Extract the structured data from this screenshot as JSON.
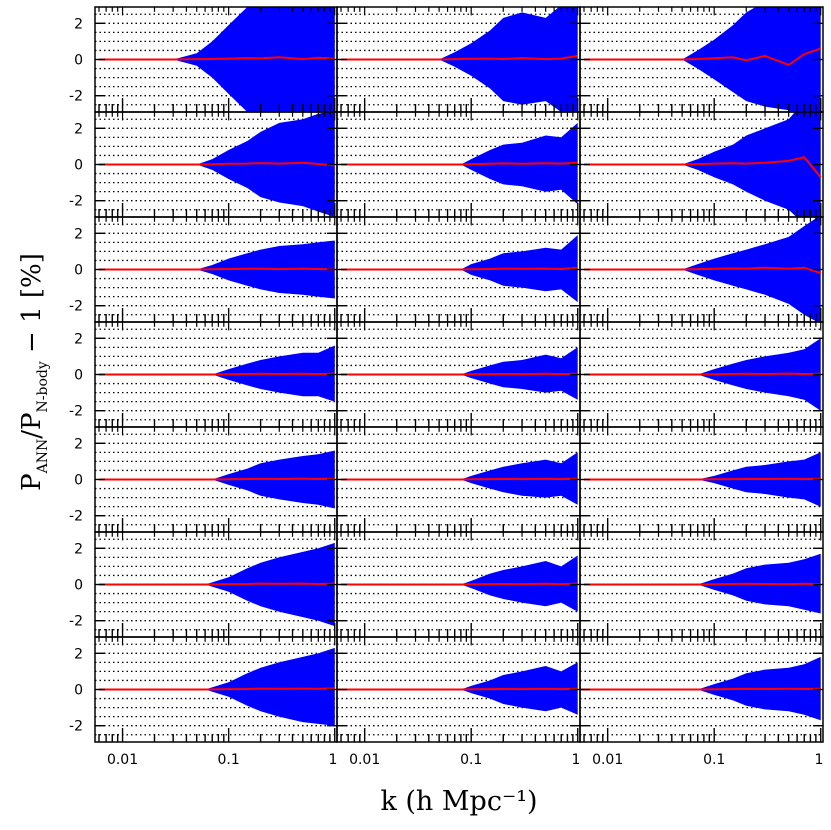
{
  "chart_data": {
    "type": "area",
    "layout": {
      "rows": 7,
      "cols": 3
    },
    "xscale": "log",
    "xlim": [
      0.0055,
      1.05
    ],
    "ylim": [
      -2.9,
      2.9
    ],
    "xticks": [
      0.01,
      0.1,
      1
    ],
    "xtick_labels": [
      "0.01",
      "0.1",
      "1"
    ],
    "yticks": [
      -2,
      0,
      2
    ],
    "ytick_labels": [
      "-2",
      "0",
      "2"
    ],
    "dotted_grid_y": [
      -2.5,
      -2,
      -1.5,
      -1,
      -0.5,
      0.5,
      1,
      1.5,
      2,
      2.5
    ],
    "xlabel": "k (h Mpc⁻¹)",
    "ylabel": {
      "main": "P",
      "sub1": "ANN",
      "slash": "/P",
      "sub2": "N-body",
      "rest": " − 1  [%]"
    },
    "band_color": "#0000ff",
    "line_color": "#ff0000",
    "k_min": [
      [
        0.006,
        0.006,
        0.006
      ],
      [
        0.006,
        0.006,
        0.006
      ],
      [
        0.006,
        0.006,
        0.006
      ],
      [
        0.006,
        0.006,
        0.006
      ],
      [
        0.006,
        0.006,
        0.006
      ],
      [
        0.006,
        0.006,
        0.006
      ],
      [
        0.006,
        0.005,
        0.005
      ]
    ],
    "panels": [
      [
        {
          "onset": 0.03,
          "k": [
            0.03,
            0.05,
            0.07,
            0.1,
            0.15,
            0.2,
            0.3,
            0.5,
            0.7,
            1.0
          ],
          "upper": [
            0,
            0.35,
            1.0,
            1.9,
            2.9,
            3.5,
            3.8,
            3.8,
            3.8,
            3.8
          ],
          "lower": [
            0,
            -0.35,
            -1.0,
            -1.9,
            -2.9,
            -3.5,
            -3.8,
            -3.8,
            -3.8,
            -3.8
          ],
          "ratio": [
            0,
            0.02,
            0.03,
            0.05,
            0.08,
            0.06,
            0.12,
            0.02,
            0.1,
            0.05
          ]
        },
        {
          "onset": 0.05,
          "k": [
            0.05,
            0.07,
            0.1,
            0.15,
            0.2,
            0.3,
            0.5,
            0.7,
            1.0
          ],
          "upper": [
            0,
            0.4,
            0.9,
            1.6,
            2.3,
            2.6,
            2.3,
            3.0,
            3.8
          ],
          "lower": [
            0,
            -0.4,
            -0.9,
            -1.6,
            -2.3,
            -2.5,
            -2.3,
            -2.9,
            -3.8
          ],
          "ratio": [
            0,
            0.02,
            0.04,
            0.05,
            0.03,
            0.08,
            0.02,
            0.05,
            0.2
          ]
        },
        {
          "onset": 0.05,
          "k": [
            0.05,
            0.07,
            0.1,
            0.15,
            0.2,
            0.3,
            0.5,
            0.7,
            1.0
          ],
          "upper": [
            0,
            0.5,
            1.1,
            1.9,
            2.6,
            3.2,
            3.6,
            3.8,
            3.8
          ],
          "lower": [
            0,
            -0.5,
            -1.1,
            -1.8,
            -2.3,
            -2.6,
            -2.8,
            -3.4,
            -3.8
          ],
          "ratio": [
            0,
            0.03,
            0.07,
            0.12,
            -0.05,
            0.2,
            -0.3,
            0.3,
            0.6
          ]
        }
      ],
      [
        {
          "onset": 0.05,
          "k": [
            0.05,
            0.07,
            0.1,
            0.15,
            0.2,
            0.3,
            0.5,
            0.7,
            1.0
          ],
          "upper": [
            0,
            0.3,
            0.8,
            1.3,
            1.8,
            2.3,
            2.5,
            2.8,
            3.0
          ],
          "lower": [
            0,
            -0.3,
            -0.8,
            -1.3,
            -1.8,
            -2.1,
            -2.3,
            -2.6,
            -2.9
          ],
          "ratio": [
            0,
            0.01,
            0.04,
            0.05,
            0.08,
            0.05,
            0.1,
            0.03,
            -0.05
          ]
        },
        {
          "onset": 0.08,
          "k": [
            0.08,
            0.1,
            0.15,
            0.2,
            0.3,
            0.5,
            0.7,
            1.0
          ],
          "upper": [
            0,
            0.3,
            0.8,
            1.1,
            1.2,
            1.6,
            1.5,
            2.3
          ],
          "lower": [
            0,
            -0.3,
            -0.8,
            -1.1,
            -1.2,
            -1.5,
            -1.4,
            -2.2
          ],
          "ratio": [
            0,
            0.02,
            0.04,
            0.06,
            0.04,
            0.07,
            0.05,
            0.1
          ]
        },
        {
          "onset": 0.05,
          "k": [
            0.05,
            0.07,
            0.1,
            0.15,
            0.2,
            0.3,
            0.5,
            0.7,
            1.0
          ],
          "upper": [
            0,
            0.3,
            0.7,
            1.1,
            1.6,
            2.0,
            2.5,
            3.5,
            3.8
          ],
          "lower": [
            0,
            -0.3,
            -0.7,
            -1.1,
            -1.5,
            -2.0,
            -2.5,
            -3.3,
            -3.8
          ],
          "ratio": [
            0,
            0.02,
            0.05,
            0.07,
            0.05,
            0.1,
            0.2,
            0.4,
            -0.7
          ]
        }
      ],
      [
        {
          "onset": 0.05,
          "k": [
            0.05,
            0.07,
            0.1,
            0.15,
            0.2,
            0.3,
            0.5,
            0.7,
            1.0
          ],
          "upper": [
            0,
            0.25,
            0.6,
            0.9,
            1.1,
            1.3,
            1.4,
            1.5,
            1.6
          ],
          "lower": [
            0,
            -0.25,
            -0.6,
            -0.9,
            -1.1,
            -1.3,
            -1.4,
            -1.5,
            -1.6
          ],
          "ratio": [
            0,
            0.01,
            0.03,
            0.04,
            0.05,
            0.02,
            0.05,
            0.03,
            0.0
          ]
        },
        {
          "onset": 0.08,
          "k": [
            0.08,
            0.1,
            0.15,
            0.2,
            0.3,
            0.5,
            0.7,
            1.0
          ],
          "upper": [
            0,
            0.3,
            0.6,
            0.9,
            1.0,
            1.2,
            1.1,
            1.9
          ],
          "lower": [
            0,
            -0.3,
            -0.6,
            -0.9,
            -1.0,
            -1.2,
            -1.1,
            -1.8
          ],
          "ratio": [
            0,
            0.01,
            0.03,
            0.05,
            0.04,
            0.05,
            0.03,
            0.1
          ]
        },
        {
          "onset": 0.05,
          "k": [
            0.05,
            0.07,
            0.1,
            0.15,
            0.2,
            0.3,
            0.5,
            0.7,
            1.0
          ],
          "upper": [
            0,
            0.3,
            0.6,
            0.9,
            1.1,
            1.4,
            1.8,
            2.4,
            3.0
          ],
          "lower": [
            0,
            -0.3,
            -0.6,
            -0.9,
            -1.1,
            -1.4,
            -1.9,
            -2.5,
            -3.0
          ],
          "ratio": [
            0,
            0.02,
            0.04,
            0.06,
            0.05,
            0.1,
            0.05,
            0.1,
            -0.2
          ]
        }
      ],
      [
        {
          "onset": 0.07,
          "k": [
            0.07,
            0.1,
            0.15,
            0.2,
            0.3,
            0.5,
            0.7,
            1.0
          ],
          "upper": [
            0,
            0.3,
            0.6,
            0.8,
            1.0,
            1.2,
            1.2,
            1.6
          ],
          "lower": [
            0,
            -0.3,
            -0.6,
            -0.8,
            -1.0,
            -1.2,
            -1.2,
            -1.5
          ],
          "ratio": [
            0,
            0.01,
            0.03,
            0.04,
            0.03,
            0.04,
            0.02,
            0.05
          ]
        },
        {
          "onset": 0.08,
          "k": [
            0.08,
            0.1,
            0.15,
            0.2,
            0.3,
            0.5,
            0.7,
            1.0
          ],
          "upper": [
            0,
            0.2,
            0.5,
            0.7,
            0.8,
            1.1,
            0.9,
            1.5
          ],
          "lower": [
            0,
            -0.2,
            -0.5,
            -0.7,
            -0.8,
            -1.0,
            -0.9,
            -1.4
          ],
          "ratio": [
            0,
            0.01,
            0.02,
            0.03,
            0.02,
            0.04,
            0.02,
            0.05
          ]
        },
        {
          "onset": 0.07,
          "k": [
            0.07,
            0.1,
            0.15,
            0.2,
            0.3,
            0.5,
            0.7,
            1.0
          ],
          "upper": [
            0,
            0.3,
            0.6,
            0.8,
            1.0,
            1.2,
            1.4,
            2.0
          ],
          "lower": [
            0,
            -0.3,
            -0.6,
            -0.8,
            -1.0,
            -1.2,
            -1.4,
            -2.0
          ],
          "ratio": [
            0,
            0.01,
            0.03,
            0.04,
            0.03,
            0.05,
            0.03,
            0.04
          ]
        }
      ],
      [
        {
          "onset": 0.07,
          "k": [
            0.07,
            0.1,
            0.15,
            0.2,
            0.3,
            0.5,
            0.7,
            1.0
          ],
          "upper": [
            0,
            0.3,
            0.6,
            0.9,
            1.1,
            1.3,
            1.4,
            1.6
          ],
          "lower": [
            0,
            -0.3,
            -0.6,
            -0.9,
            -1.1,
            -1.3,
            -1.4,
            -1.6
          ],
          "ratio": [
            0,
            0.01,
            0.03,
            0.04,
            0.03,
            0.05,
            0.03,
            0.05
          ]
        },
        {
          "onset": 0.08,
          "k": [
            0.08,
            0.1,
            0.15,
            0.2,
            0.3,
            0.5,
            0.7,
            1.0
          ],
          "upper": [
            0,
            0.2,
            0.5,
            0.7,
            0.9,
            1.1,
            0.9,
            1.5
          ],
          "lower": [
            0,
            -0.2,
            -0.5,
            -0.7,
            -0.9,
            -1.0,
            -0.9,
            -1.4
          ],
          "ratio": [
            0,
            0.01,
            0.02,
            0.03,
            0.02,
            0.04,
            0.02,
            0.05
          ]
        },
        {
          "onset": 0.07,
          "k": [
            0.07,
            0.1,
            0.15,
            0.2,
            0.3,
            0.5,
            0.7,
            1.0
          ],
          "upper": [
            0,
            0.2,
            0.5,
            0.7,
            0.8,
            1.0,
            1.1,
            1.5
          ],
          "lower": [
            0,
            -0.2,
            -0.5,
            -0.7,
            -0.8,
            -1.0,
            -1.1,
            -1.5
          ],
          "ratio": [
            0,
            0.01,
            0.02,
            0.03,
            0.03,
            0.04,
            0.02,
            0.04
          ]
        }
      ],
      [
        {
          "onset": 0.06,
          "k": [
            0.06,
            0.1,
            0.15,
            0.2,
            0.3,
            0.5,
            0.7,
            1.0
          ],
          "upper": [
            0,
            0.4,
            0.9,
            1.2,
            1.5,
            1.8,
            2.0,
            2.3
          ],
          "lower": [
            0,
            -0.4,
            -0.9,
            -1.2,
            -1.5,
            -1.8,
            -2.0,
            -2.3
          ],
          "ratio": [
            0,
            0.02,
            0.03,
            0.05,
            0.04,
            0.05,
            0.03,
            0.05
          ]
        },
        {
          "onset": 0.08,
          "k": [
            0.08,
            0.1,
            0.15,
            0.2,
            0.3,
            0.5,
            0.7,
            1.0
          ],
          "upper": [
            0,
            0.2,
            0.6,
            0.8,
            1.0,
            1.3,
            1.0,
            1.6
          ],
          "lower": [
            0,
            -0.2,
            -0.6,
            -0.8,
            -1.0,
            -1.2,
            -1.0,
            -1.5
          ],
          "ratio": [
            0,
            0.01,
            0.02,
            0.03,
            0.02,
            0.04,
            0.02,
            0.05
          ]
        },
        {
          "onset": 0.07,
          "k": [
            0.07,
            0.1,
            0.15,
            0.2,
            0.3,
            0.5,
            0.7,
            1.0
          ],
          "upper": [
            0,
            0.3,
            0.6,
            0.9,
            1.1,
            1.2,
            1.4,
            1.7
          ],
          "lower": [
            0,
            -0.3,
            -0.6,
            -0.9,
            -1.1,
            -1.2,
            -1.4,
            -1.6
          ],
          "ratio": [
            0,
            0.01,
            0.03,
            0.04,
            0.03,
            0.02,
            0.04,
            0.02
          ]
        }
      ],
      [
        {
          "onset": 0.06,
          "k": [
            0.06,
            0.1,
            0.15,
            0.2,
            0.3,
            0.5,
            0.7,
            1.0
          ],
          "upper": [
            0,
            0.4,
            0.9,
            1.2,
            1.5,
            1.8,
            2.0,
            2.3
          ],
          "lower": [
            0,
            -0.4,
            -0.9,
            -1.2,
            -1.5,
            -1.8,
            -1.9,
            -2.0
          ],
          "ratio": [
            0,
            0.02,
            0.03,
            0.05,
            0.04,
            0.05,
            0.04,
            0.06
          ]
        },
        {
          "onset": 0.08,
          "k": [
            0.08,
            0.1,
            0.15,
            0.2,
            0.3,
            0.5,
            0.7,
            1.0
          ],
          "upper": [
            0,
            0.2,
            0.5,
            0.8,
            1.0,
            1.3,
            1.0,
            1.5
          ],
          "lower": [
            0,
            -0.2,
            -0.5,
            -0.8,
            -1.0,
            -1.2,
            -1.0,
            -1.4
          ],
          "ratio": [
            0,
            0.01,
            0.02,
            0.03,
            0.02,
            0.04,
            0.02,
            0.05
          ]
        },
        {
          "onset": 0.07,
          "k": [
            0.07,
            0.1,
            0.15,
            0.2,
            0.3,
            0.5,
            0.7,
            1.0
          ],
          "upper": [
            0,
            0.3,
            0.6,
            0.9,
            1.1,
            1.2,
            1.4,
            1.8
          ],
          "lower": [
            0,
            -0.3,
            -0.6,
            -0.9,
            -1.1,
            -1.2,
            -1.4,
            -1.7
          ],
          "ratio": [
            0,
            0.01,
            0.03,
            0.04,
            0.03,
            0.04,
            0.03,
            0.05
          ]
        }
      ]
    ]
  }
}
